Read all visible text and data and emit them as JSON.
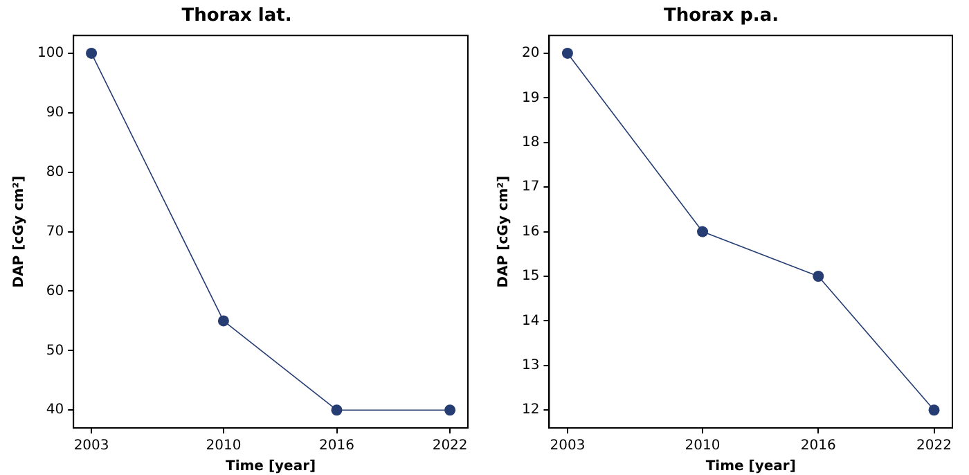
{
  "chart_data": [
    {
      "type": "line",
      "title": "Thorax lat.",
      "xlabel": "Time [year]",
      "ylabel": "DAP [cGy cm²]",
      "x": [
        2003,
        2010,
        2016,
        2022
      ],
      "values": [
        100,
        55,
        40,
        40
      ],
      "color": "#253d72",
      "xlim": [
        2002.05,
        2022.95
      ],
      "xticks": [
        2003,
        2010,
        2016,
        2022
      ],
      "ylim": [
        37,
        103
      ],
      "yticks": [
        40,
        50,
        60,
        70,
        80,
        90,
        100
      ],
      "marker": "circle",
      "grid": false
    },
    {
      "type": "line",
      "title": "Thorax p.a.",
      "xlabel": "Time [year]",
      "ylabel": "DAP [cGy cm²]",
      "x": [
        2003,
        2010,
        2016,
        2022
      ],
      "values": [
        20,
        16,
        15,
        12
      ],
      "color": "#253d72",
      "xlim": [
        2002.05,
        2022.95
      ],
      "xticks": [
        2003,
        2010,
        2016,
        2022
      ],
      "ylim": [
        11.6,
        20.4
      ],
      "yticks": [
        12,
        13,
        14,
        15,
        16,
        17,
        18,
        19,
        20
      ],
      "marker": "circle",
      "grid": false
    }
  ]
}
